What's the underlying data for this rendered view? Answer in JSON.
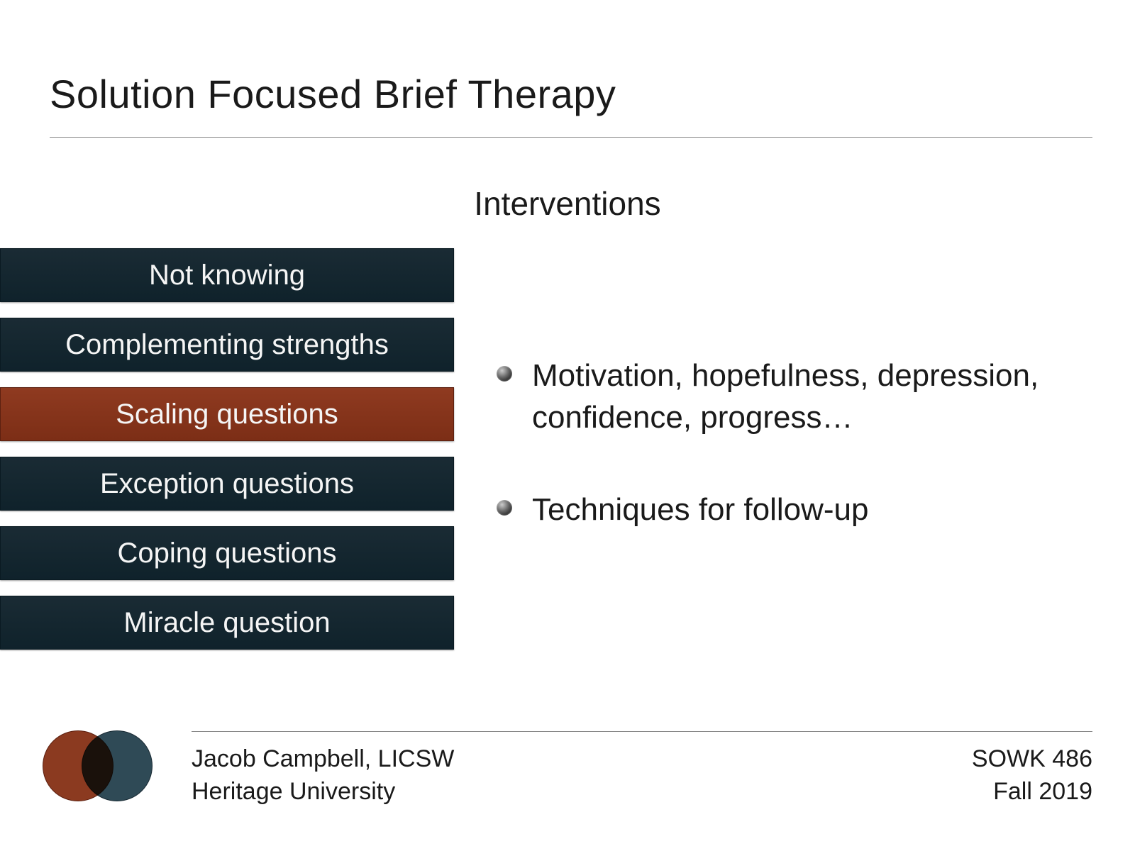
{
  "title": "Solution Focused Brief Therapy",
  "subtitle": "Interventions",
  "colors": {
    "bar_default_bg": "#12242d",
    "bar_accent_bg": "#81331a",
    "bar_text": "#f5f5f5",
    "body_text": "#1a1a1a",
    "rule": "#888888",
    "logo_left": "#8b3a20",
    "logo_right": "#2f4a56",
    "background": "#ffffff"
  },
  "typography": {
    "title_fontsize": 56,
    "subtitle_fontsize": 46,
    "bar_fontsize": 40,
    "bullet_fontsize": 44,
    "footer_fontsize": 34,
    "font_weight": 300
  },
  "bars": [
    {
      "label": "Not knowing",
      "accent": false
    },
    {
      "label": "Complementing strengths",
      "accent": false
    },
    {
      "label": "Scaling questions",
      "accent": true
    },
    {
      "label": "Exception questions",
      "accent": false
    },
    {
      "label": "Coping questions",
      "accent": false
    },
    {
      "label": "Miracle question",
      "accent": false
    }
  ],
  "bullets": [
    "Motivation, hopefulness, depression, confidence, progress…",
    "Techniques for follow-up"
  ],
  "footer": {
    "author": "Jacob Campbell, LICSW",
    "institution": "Heritage University",
    "course": "SOWK 486",
    "term": "Fall 2019"
  }
}
